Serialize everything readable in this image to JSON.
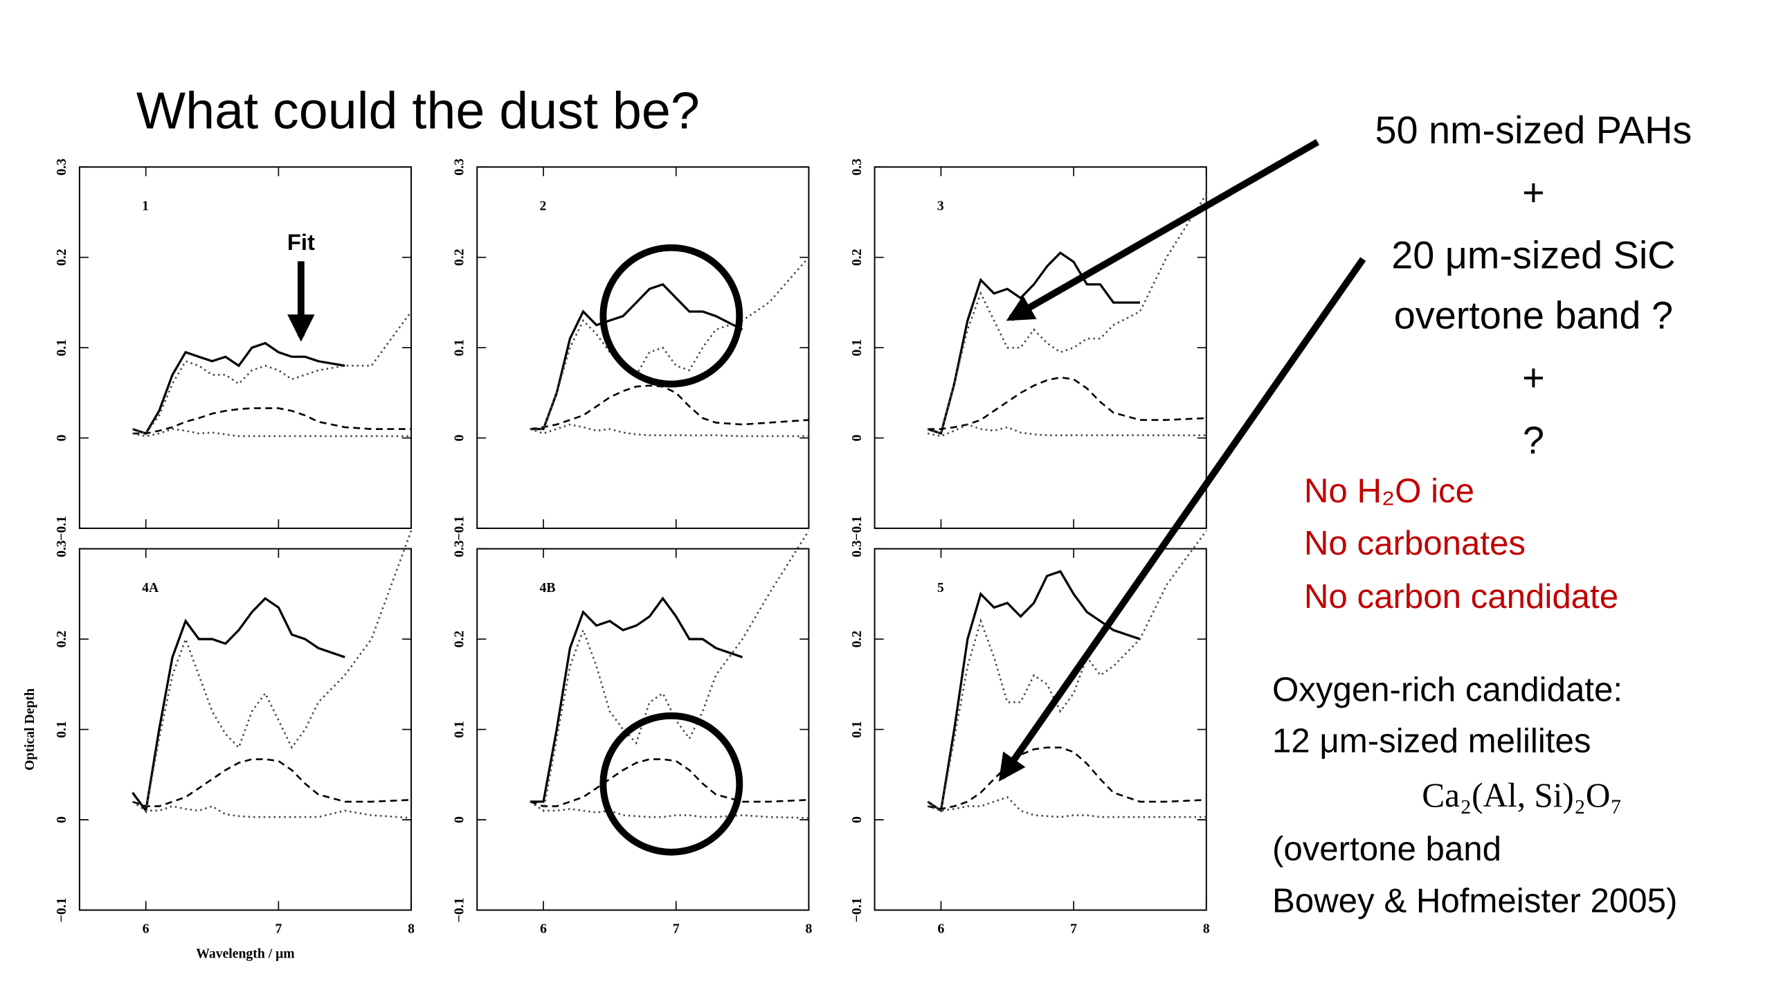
{
  "title": "What could the dust be?",
  "fit_label": "Fit",
  "hypothesis": [
    "50 nm-sized PAHs",
    "+",
    "20 μm-sized SiC",
    "overtone band ?",
    "+",
    "?"
  ],
  "excluded": [
    "No H₂O ice",
    "No carbonates",
    "No carbon candidate"
  ],
  "candidate": [
    "Oxygen-rich candidate:",
    "12 μm-sized melilites",
    "Ca₂(Al, Si)₂O₇",
    "(overtone band",
    "Bowey & Hofmeister 2005)"
  ],
  "chart_data": [
    {
      "type": "line",
      "label": "1",
      "xlim": [
        5.5,
        8
      ],
      "xticks": [
        6,
        7,
        8
      ],
      "ylim": [
        -0.1,
        0.3
      ],
      "yticks": [
        {
          "value": -0.1,
          "label": "−0.1"
        },
        0,
        0.1,
        0.2,
        0.3
      ],
      "x": [
        5.9,
        6.0,
        6.1,
        6.2,
        6.3,
        6.4,
        6.5,
        6.6,
        6.7,
        6.8,
        6.9,
        7.0,
        7.1,
        7.2,
        7.3,
        7.5,
        7.7,
        8.0
      ],
      "series": [
        {
          "color": "#000000",
          "style": "solid",
          "values": [
            0.01,
            0.005,
            0.03,
            0.07,
            0.095,
            0.09,
            0.085,
            0.09,
            0.08,
            0.1,
            0.105,
            0.095,
            0.09,
            0.09,
            0.085,
            0.08,
            null,
            null
          ]
        },
        {
          "color": "#000000",
          "style": "dashed",
          "values": [
            0.005,
            0.005,
            0.008,
            0.012,
            0.018,
            0.022,
            0.027,
            0.03,
            0.032,
            0.033,
            0.033,
            0.033,
            0.03,
            0.025,
            0.018,
            0.012,
            0.01,
            0.01
          ]
        },
        {
          "color": "#444444",
          "style": "dotted",
          "values": [
            0.01,
            0.005,
            0.025,
            0.06,
            0.085,
            0.08,
            0.07,
            0.07,
            0.06,
            0.075,
            0.08,
            0.075,
            0.065,
            0.07,
            0.075,
            0.08,
            0.08,
            0.14
          ]
        },
        {
          "color": "#444444",
          "style": "dotted",
          "values": [
            0.005,
            0.002,
            0.005,
            0.01,
            0.008,
            0.005,
            0.006,
            0.004,
            0.002,
            0.002,
            0.002,
            0.002,
            0.002,
            0.002,
            0.002,
            0.002,
            0.002,
            0.002
          ]
        }
      ]
    },
    {
      "type": "line",
      "label": "2",
      "xlim": [
        5.5,
        8
      ],
      "xticks": [
        6,
        7,
        8
      ],
      "ylim": [
        -0.1,
        0.3
      ],
      "yticks": [
        {
          "value": -0.1,
          "label": "−0.1"
        },
        0,
        0.1,
        0.2,
        0.3
      ],
      "x": [
        5.9,
        6.0,
        6.1,
        6.2,
        6.3,
        6.4,
        6.5,
        6.6,
        6.7,
        6.8,
        6.9,
        7.0,
        7.1,
        7.2,
        7.3,
        7.5,
        7.7,
        8.0
      ],
      "series": [
        {
          "color": "#000000",
          "style": "solid",
          "values": [
            0.01,
            0.01,
            0.05,
            0.11,
            0.14,
            0.125,
            0.13,
            0.135,
            0.15,
            0.165,
            0.17,
            0.155,
            0.14,
            0.14,
            0.135,
            0.12,
            null,
            null
          ]
        },
        {
          "color": "#000000",
          "style": "dashed",
          "values": [
            0.01,
            0.012,
            0.015,
            0.02,
            0.025,
            0.035,
            0.045,
            0.052,
            0.057,
            0.058,
            0.057,
            0.05,
            0.035,
            0.022,
            0.017,
            0.015,
            0.017,
            0.02
          ]
        },
        {
          "color": "#444444",
          "style": "dotted",
          "values": [
            0.01,
            0.01,
            0.05,
            0.1,
            0.13,
            0.115,
            0.095,
            0.08,
            0.07,
            0.095,
            0.1,
            0.08,
            0.075,
            0.1,
            0.12,
            0.13,
            0.15,
            0.2
          ]
        },
        {
          "color": "#444444",
          "style": "dotted",
          "values": [
            0.01,
            0.005,
            0.01,
            0.015,
            0.012,
            0.008,
            0.01,
            0.006,
            0.004,
            0.003,
            0.003,
            0.003,
            0.003,
            0.003,
            0.003,
            0.002,
            0.002,
            0.002
          ]
        }
      ]
    },
    {
      "type": "line",
      "label": "3",
      "xlim": [
        5.5,
        8
      ],
      "xticks": [
        6,
        7,
        8
      ],
      "ylim": [
        -0.1,
        0.3
      ],
      "yticks": [
        {
          "value": -0.1,
          "label": "−0.1"
        },
        0,
        0.1,
        0.2,
        0.3
      ],
      "x": [
        5.9,
        6.0,
        6.1,
        6.2,
        6.3,
        6.4,
        6.5,
        6.6,
        6.7,
        6.8,
        6.9,
        7.0,
        7.1,
        7.2,
        7.3,
        7.5,
        7.7,
        8.0
      ],
      "series": [
        {
          "color": "#000000",
          "style": "solid",
          "values": [
            0.01,
            0.005,
            0.06,
            0.13,
            0.175,
            0.16,
            0.165,
            0.155,
            0.17,
            0.19,
            0.205,
            0.195,
            0.17,
            0.17,
            0.15,
            0.15,
            null,
            null
          ]
        },
        {
          "color": "#000000",
          "style": "dashed",
          "values": [
            0.01,
            0.01,
            0.012,
            0.015,
            0.02,
            0.03,
            0.04,
            0.05,
            0.058,
            0.064,
            0.067,
            0.065,
            0.055,
            0.04,
            0.028,
            0.02,
            0.02,
            0.022
          ]
        },
        {
          "color": "#444444",
          "style": "dotted",
          "values": [
            0.01,
            0.005,
            0.06,
            0.12,
            0.16,
            0.13,
            0.1,
            0.1,
            0.12,
            0.105,
            0.095,
            0.1,
            0.11,
            0.11,
            0.125,
            0.14,
            0.2,
            0.27
          ]
        },
        {
          "color": "#444444",
          "style": "dotted",
          "values": [
            0.005,
            0.002,
            0.008,
            0.015,
            0.01,
            0.008,
            0.012,
            0.006,
            0.004,
            0.003,
            0.003,
            0.003,
            0.003,
            0.003,
            0.003,
            0.003,
            0.003,
            0.003
          ]
        }
      ]
    },
    {
      "type": "line",
      "label": "4A",
      "xlim": [
        5.5,
        8
      ],
      "xticks": [
        6,
        7,
        8
      ],
      "ylim": [
        -0.1,
        0.3
      ],
      "yticks": [
        {
          "value": -0.1,
          "label": "−0.1"
        },
        0,
        0.1,
        0.2,
        0.3
      ],
      "xlabel": "Wavelength / μm",
      "ylabel": "Optical Depth",
      "x": [
        5.9,
        6.0,
        6.1,
        6.2,
        6.3,
        6.4,
        6.5,
        6.6,
        6.7,
        6.8,
        6.9,
        7.0,
        7.1,
        7.2,
        7.3,
        7.5,
        7.7,
        8.0
      ],
      "series": [
        {
          "color": "#000000",
          "style": "solid",
          "values": [
            0.03,
            0.01,
            0.1,
            0.18,
            0.22,
            0.2,
            0.2,
            0.195,
            0.21,
            0.23,
            0.245,
            0.235,
            0.205,
            0.2,
            0.19,
            0.18,
            null,
            null
          ]
        },
        {
          "color": "#000000",
          "style": "dashed",
          "values": [
            0.02,
            0.015,
            0.015,
            0.02,
            0.025,
            0.035,
            0.045,
            0.055,
            0.063,
            0.067,
            0.067,
            0.065,
            0.055,
            0.04,
            0.028,
            0.02,
            0.02,
            0.022
          ]
        },
        {
          "color": "#444444",
          "style": "dotted",
          "values": [
            0.02,
            0.01,
            0.09,
            0.16,
            0.2,
            0.16,
            0.12,
            0.095,
            0.08,
            0.12,
            0.14,
            0.11,
            0.08,
            0.1,
            0.13,
            0.16,
            0.2,
            0.32
          ]
        },
        {
          "color": "#444444",
          "style": "dotted",
          "values": [
            0.02,
            0.01,
            0.01,
            0.015,
            0.012,
            0.01,
            0.015,
            0.006,
            0.004,
            0.003,
            0.003,
            0.003,
            0.003,
            0.003,
            0.003,
            0.01,
            0.005,
            0.002
          ]
        }
      ]
    },
    {
      "type": "line",
      "label": "4B",
      "xlim": [
        5.5,
        8
      ],
      "xticks": [
        6,
        7,
        8
      ],
      "ylim": [
        -0.1,
        0.3
      ],
      "yticks": [
        {
          "value": -0.1,
          "label": "−0.1"
        },
        0,
        0.1,
        0.2,
        0.3
      ],
      "x": [
        5.9,
        6.0,
        6.1,
        6.2,
        6.3,
        6.4,
        6.5,
        6.6,
        6.7,
        6.8,
        6.9,
        7.0,
        7.1,
        7.2,
        7.3,
        7.5,
        7.7,
        8.0
      ],
      "series": [
        {
          "color": "#000000",
          "style": "solid",
          "values": [
            0.02,
            0.02,
            0.1,
            0.19,
            0.23,
            0.215,
            0.22,
            0.21,
            0.215,
            0.225,
            0.245,
            0.225,
            0.2,
            0.2,
            0.19,
            0.18,
            null,
            null
          ]
        },
        {
          "color": "#000000",
          "style": "dashed",
          "values": [
            0.02,
            0.015,
            0.015,
            0.02,
            0.025,
            0.035,
            0.045,
            0.055,
            0.063,
            0.067,
            0.067,
            0.065,
            0.055,
            0.04,
            0.028,
            0.02,
            0.02,
            0.022
          ]
        },
        {
          "color": "#444444",
          "style": "dotted",
          "values": [
            0.02,
            0.01,
            0.09,
            0.17,
            0.21,
            0.17,
            0.12,
            0.1,
            0.085,
            0.13,
            0.14,
            0.11,
            0.09,
            0.12,
            0.16,
            0.2,
            0.25,
            0.32
          ]
        },
        {
          "color": "#444444",
          "style": "dotted",
          "values": [
            0.02,
            0.01,
            0.01,
            0.012,
            0.01,
            0.008,
            0.01,
            0.005,
            0.004,
            0.003,
            0.003,
            0.005,
            0.005,
            0.003,
            0.003,
            0.005,
            0.003,
            0.002
          ]
        }
      ]
    },
    {
      "type": "line",
      "label": "5",
      "xlim": [
        5.5,
        8
      ],
      "xticks": [
        6,
        7,
        8
      ],
      "ylim": [
        -0.1,
        0.3
      ],
      "yticks": [
        {
          "value": -0.1,
          "label": "−0.1"
        },
        0,
        0.1,
        0.2,
        0.3
      ],
      "x": [
        5.9,
        6.0,
        6.1,
        6.2,
        6.3,
        6.4,
        6.5,
        6.6,
        6.7,
        6.8,
        6.9,
        7.0,
        7.1,
        7.2,
        7.3,
        7.5,
        7.7,
        8.0
      ],
      "series": [
        {
          "color": "#000000",
          "style": "solid",
          "values": [
            0.02,
            0.01,
            0.1,
            0.2,
            0.25,
            0.235,
            0.24,
            0.225,
            0.24,
            0.27,
            0.275,
            0.25,
            0.23,
            0.22,
            0.21,
            0.2,
            null,
            null
          ]
        },
        {
          "color": "#000000",
          "style": "dashed",
          "values": [
            0.015,
            0.012,
            0.015,
            0.02,
            0.03,
            0.045,
            0.06,
            0.072,
            0.078,
            0.08,
            0.08,
            0.075,
            0.062,
            0.045,
            0.03,
            0.02,
            0.02,
            0.022
          ]
        },
        {
          "color": "#444444",
          "style": "dotted",
          "values": [
            0.02,
            0.01,
            0.09,
            0.17,
            0.22,
            0.18,
            0.13,
            0.13,
            0.16,
            0.15,
            0.12,
            0.14,
            0.18,
            0.16,
            0.17,
            0.2,
            0.26,
            0.32
          ]
        },
        {
          "color": "#444444",
          "style": "dotted",
          "values": [
            0.015,
            0.01,
            0.012,
            0.015,
            0.015,
            0.02,
            0.025,
            0.01,
            0.005,
            0.004,
            0.003,
            0.005,
            0.005,
            0.003,
            0.003,
            0.003,
            0.003,
            0.003
          ]
        }
      ]
    }
  ]
}
